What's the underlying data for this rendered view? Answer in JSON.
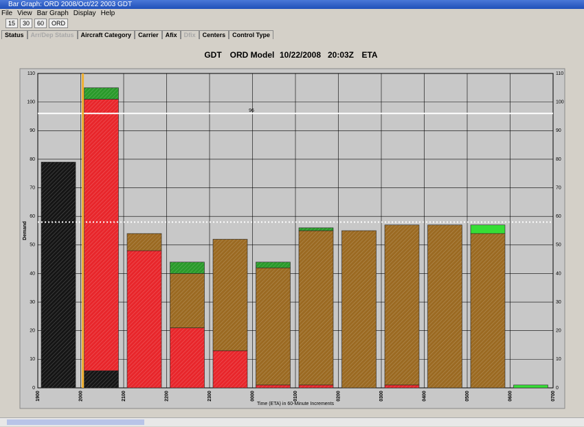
{
  "window": {
    "title": "Bar Graph: ORD 2008/Oct/22 2003 GDT",
    "menu": [
      "File",
      "View",
      "Bar Graph",
      "Display",
      "Help"
    ],
    "toolbar": [
      "15",
      "30",
      "60",
      "ORD"
    ],
    "tabs": [
      {
        "label": "Status",
        "enabled": true
      },
      {
        "label": "Arr/Dep Status",
        "enabled": false
      },
      {
        "label": "Aircraft Category",
        "enabled": true
      },
      {
        "label": "Carrier",
        "enabled": true
      },
      {
        "label": "Afix",
        "enabled": true
      },
      {
        "label": "Dfix",
        "enabled": false
      },
      {
        "label": "Centers",
        "enabled": true
      },
      {
        "label": "Control Type",
        "enabled": true
      }
    ]
  },
  "chart_data": {
    "type": "bar",
    "stacked": true,
    "title": [
      "GDT",
      "ORD Model",
      "10/22/2008",
      "20:03Z",
      "ETA"
    ],
    "xlabel": "Time (ETA) in 60-Minute Increments",
    "ylabel": "Demand",
    "xlim": [
      0,
      12
    ],
    "xticks": [
      {
        "value": 0,
        "label": "1900"
      },
      {
        "value": 1,
        "label": "2000"
      },
      {
        "value": 2,
        "label": "2100"
      },
      {
        "value": 3,
        "label": "2200"
      },
      {
        "value": 4,
        "label": "2300"
      },
      {
        "value": 5,
        "label": "0000"
      },
      {
        "value": 6,
        "label": "0100"
      },
      {
        "value": 7,
        "label": "0200"
      },
      {
        "value": 8,
        "label": "0300"
      },
      {
        "value": 9,
        "label": "0400"
      },
      {
        "value": 10,
        "label": "0500"
      },
      {
        "value": 11,
        "label": "0600"
      },
      {
        "value": 12,
        "label": "0700"
      }
    ],
    "ylim": [
      0,
      110
    ],
    "yticks": [
      0,
      10,
      20,
      30,
      40,
      50,
      60,
      70,
      80,
      90,
      100,
      110
    ],
    "grid": true,
    "series": [
      {
        "color": "#151515",
        "hatched": true,
        "values": [
          79,
          6,
          0,
          0,
          0,
          0,
          0,
          0,
          0,
          0,
          0,
          0
        ]
      },
      {
        "color": "#e8262b",
        "hatched": true,
        "values": [
          0,
          95,
          48,
          21,
          13,
          1,
          1,
          0,
          1,
          0,
          0,
          0
        ]
      },
      {
        "color": "#9b6a22",
        "hatched": true,
        "values": [
          0,
          0,
          6,
          19,
          39,
          41,
          54,
          55,
          56,
          57,
          54,
          0
        ]
      },
      {
        "color": "#2a9a2a",
        "hatched": true,
        "values": [
          0,
          4,
          0,
          4,
          0,
          2,
          1,
          0,
          0,
          0,
          0,
          0
        ]
      },
      {
        "color": "#36dd36",
        "hatched": false,
        "values": [
          0,
          0,
          0,
          0,
          0,
          0,
          0,
          0,
          0,
          0,
          3,
          1
        ]
      }
    ],
    "hlines": [
      {
        "value": 96,
        "style": "solid",
        "labeled": true
      },
      {
        "value": 58,
        "style": "dotted",
        "labeled": false
      }
    ],
    "vline": 1.05,
    "vline_color": "#f0b030"
  }
}
